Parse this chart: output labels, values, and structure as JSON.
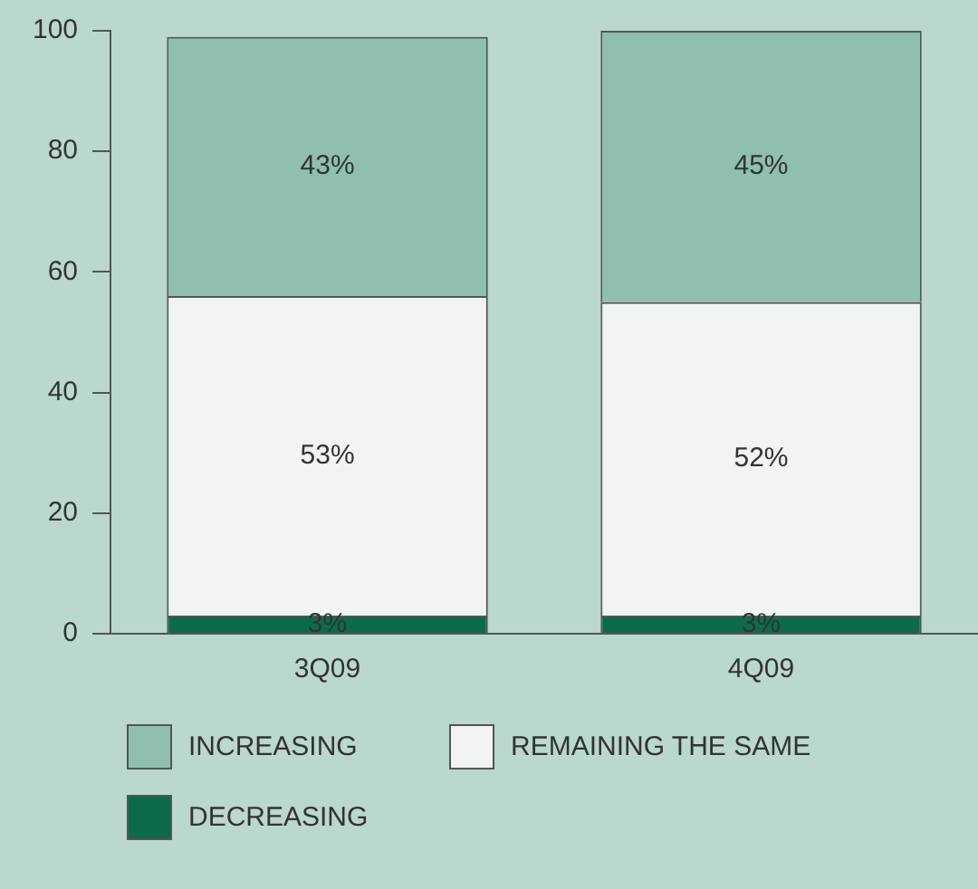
{
  "chart_data": {
    "type": "bar",
    "stacked": true,
    "categories": [
      "3Q09",
      "4Q09"
    ],
    "series": [
      {
        "name": "DECREASING",
        "color": "#0b6b4b",
        "values": [
          3,
          3
        ],
        "value_labels": [
          "3%",
          "3%"
        ]
      },
      {
        "name": "REMAINING THE SAME",
        "color": "#f1f3f5",
        "values": [
          53,
          52
        ],
        "value_labels": [
          "53%",
          "52%"
        ]
      },
      {
        "name": "INCREASING",
        "color": "#8fbfb1",
        "values": [
          43,
          45
        ],
        "value_labels": [
          "43%",
          "45%"
        ]
      }
    ],
    "ylim": [
      0,
      100
    ],
    "yticks": [
      0,
      20,
      40,
      60,
      80,
      100
    ],
    "grid": false,
    "legend": "bottom"
  }
}
